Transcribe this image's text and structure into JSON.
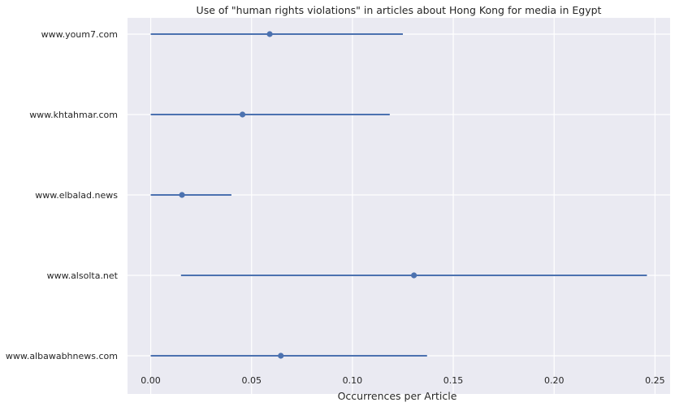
{
  "chart_data": {
    "type": "scatter",
    "title": "Use of \"human rights violations\" in articles about Hong Kong for media in Egypt",
    "xlabel": "Occurrences per Article",
    "ylabel": "",
    "xlim": [
      -0.0115,
      0.2575
    ],
    "xticks": [
      0.0,
      0.05,
      0.1,
      0.15,
      0.2,
      0.25
    ],
    "xtick_labels": [
      "0.00",
      "0.05",
      "0.10",
      "0.15",
      "0.20",
      "0.25"
    ],
    "grid": true,
    "colors": {
      "background": "#EAEAF2",
      "grid": "#FFFFFF",
      "series": "#4C72B0"
    },
    "categories": [
      "www.youm7.com",
      "www.khtahmar.com",
      "www.elbalad.news",
      "www.alsolta.net",
      "www.albawabhnews.com"
    ],
    "points": [
      {
        "label": "www.youm7.com",
        "value": 0.059,
        "ci_low": 0.0,
        "ci_high": 0.125
      },
      {
        "label": "www.khtahmar.com",
        "value": 0.0455,
        "ci_low": 0.0,
        "ci_high": 0.1185
      },
      {
        "label": "www.elbalad.news",
        "value": 0.0155,
        "ci_low": 0.0,
        "ci_high": 0.04
      },
      {
        "label": "www.alsolta.net",
        "value": 0.1305,
        "ci_low": 0.015,
        "ci_high": 0.246
      },
      {
        "label": "www.albawabhnews.com",
        "value": 0.0645,
        "ci_low": 0.0,
        "ci_high": 0.137
      }
    ]
  }
}
